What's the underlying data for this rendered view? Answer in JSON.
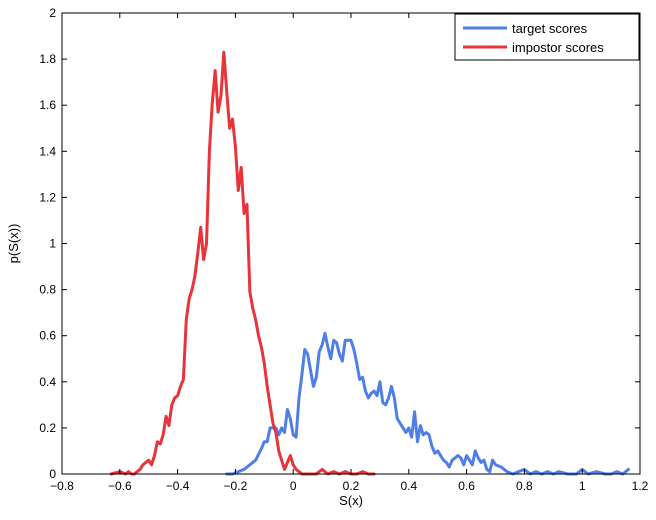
{
  "chart_data": {
    "type": "line",
    "xlabel": "S(x)",
    "ylabel": "p(S(x))",
    "xlim": [
      -0.8,
      1.2
    ],
    "ylim": [
      0,
      2
    ],
    "xticks": [
      -0.8,
      -0.6,
      -0.4,
      -0.2,
      0,
      0.2,
      0.4,
      0.6,
      0.8,
      1,
      1.2
    ],
    "xtick_labels": [
      "−0.8",
      "−0.6",
      "−0.4",
      "−0.2",
      "0",
      "0.2",
      "0.4",
      "0.6",
      "0.8",
      "1",
      "1.2"
    ],
    "yticks": [
      0,
      0.2,
      0.4,
      0.6,
      0.8,
      1,
      1.2,
      1.4,
      1.6,
      1.8,
      2
    ],
    "ytick_labels": [
      "0",
      "0.2",
      "0.4",
      "0.6",
      "0.8",
      "1",
      "1.2",
      "1.4",
      "1.6",
      "1.8",
      "2"
    ],
    "grid": false,
    "legend_position": "top-right",
    "series": [
      {
        "name": "target scores",
        "color": "#4f7fe6",
        "x": [
          -0.23,
          -0.21,
          -0.19,
          -0.17,
          -0.15,
          -0.13,
          -0.11,
          -0.1,
          -0.09,
          -0.08,
          -0.07,
          -0.06,
          -0.05,
          -0.04,
          -0.03,
          -0.02,
          -0.01,
          0.0,
          0.01,
          0.02,
          0.03,
          0.04,
          0.05,
          0.06,
          0.07,
          0.08,
          0.09,
          0.1,
          0.11,
          0.12,
          0.13,
          0.14,
          0.15,
          0.16,
          0.17,
          0.18,
          0.19,
          0.2,
          0.21,
          0.22,
          0.23,
          0.24,
          0.25,
          0.26,
          0.27,
          0.28,
          0.29,
          0.3,
          0.31,
          0.32,
          0.33,
          0.34,
          0.35,
          0.36,
          0.37,
          0.38,
          0.39,
          0.4,
          0.41,
          0.42,
          0.43,
          0.44,
          0.45,
          0.46,
          0.47,
          0.48,
          0.49,
          0.5,
          0.51,
          0.52,
          0.53,
          0.54,
          0.55,
          0.56,
          0.57,
          0.58,
          0.59,
          0.6,
          0.61,
          0.62,
          0.63,
          0.64,
          0.65,
          0.66,
          0.67,
          0.68,
          0.69,
          0.7,
          0.72,
          0.74,
          0.76,
          0.78,
          0.8,
          0.82,
          0.84,
          0.86,
          0.88,
          0.9,
          0.92,
          0.95,
          0.98,
          1.0,
          1.02,
          1.05,
          1.08,
          1.1,
          1.12,
          1.14,
          1.16
        ],
        "values": [
          0.0,
          0.0,
          0.01,
          0.02,
          0.04,
          0.06,
          0.11,
          0.14,
          0.14,
          0.2,
          0.2,
          0.2,
          0.17,
          0.2,
          0.18,
          0.28,
          0.24,
          0.17,
          0.16,
          0.33,
          0.43,
          0.54,
          0.52,
          0.45,
          0.38,
          0.42,
          0.53,
          0.56,
          0.61,
          0.55,
          0.5,
          0.58,
          0.57,
          0.52,
          0.49,
          0.58,
          0.58,
          0.58,
          0.54,
          0.48,
          0.41,
          0.42,
          0.36,
          0.33,
          0.35,
          0.36,
          0.34,
          0.4,
          0.31,
          0.3,
          0.33,
          0.38,
          0.33,
          0.24,
          0.22,
          0.2,
          0.18,
          0.2,
          0.16,
          0.27,
          0.14,
          0.21,
          0.17,
          0.18,
          0.17,
          0.12,
          0.09,
          0.1,
          0.08,
          0.06,
          0.05,
          0.03,
          0.06,
          0.07,
          0.08,
          0.07,
          0.04,
          0.08,
          0.06,
          0.04,
          0.1,
          0.07,
          0.05,
          0.06,
          0.02,
          0.01,
          0.06,
          0.04,
          0.03,
          0.01,
          0.0,
          0.01,
          0.02,
          0.0,
          0.01,
          0.0,
          0.01,
          0.0,
          0.01,
          0.0,
          0.0,
          0.02,
          0.0,
          0.01,
          0.0,
          0.0,
          0.01,
          0.0,
          0.02
        ]
      },
      {
        "name": "impostor scores",
        "color": "#e8333a",
        "x": [
          -0.63,
          -0.6,
          -0.58,
          -0.57,
          -0.56,
          -0.55,
          -0.54,
          -0.53,
          -0.52,
          -0.51,
          -0.5,
          -0.49,
          -0.48,
          -0.47,
          -0.46,
          -0.45,
          -0.44,
          -0.43,
          -0.42,
          -0.41,
          -0.4,
          -0.39,
          -0.38,
          -0.37,
          -0.36,
          -0.35,
          -0.34,
          -0.33,
          -0.32,
          -0.31,
          -0.3,
          -0.29,
          -0.28,
          -0.27,
          -0.26,
          -0.25,
          -0.24,
          -0.23,
          -0.22,
          -0.21,
          -0.2,
          -0.19,
          -0.18,
          -0.17,
          -0.16,
          -0.15,
          -0.14,
          -0.13,
          -0.12,
          -0.11,
          -0.1,
          -0.09,
          -0.08,
          -0.07,
          -0.06,
          -0.05,
          -0.04,
          -0.03,
          -0.02,
          -0.01,
          0.0,
          0.01,
          0.02,
          0.03,
          0.04,
          0.05,
          0.06,
          0.07,
          0.08,
          0.1,
          0.12,
          0.14,
          0.16,
          0.18,
          0.2,
          0.22,
          0.24,
          0.26,
          0.28
        ],
        "values": [
          0.0,
          0.01,
          0.0,
          0.01,
          0.0,
          0.0,
          0.01,
          0.02,
          0.04,
          0.05,
          0.06,
          0.04,
          0.08,
          0.14,
          0.13,
          0.17,
          0.25,
          0.21,
          0.3,
          0.33,
          0.34,
          0.38,
          0.41,
          0.67,
          0.76,
          0.8,
          0.86,
          0.96,
          1.07,
          0.93,
          1.0,
          1.4,
          1.61,
          1.75,
          1.57,
          1.64,
          1.83,
          1.66,
          1.5,
          1.54,
          1.42,
          1.23,
          1.33,
          1.13,
          1.17,
          0.79,
          0.72,
          0.67,
          0.6,
          0.55,
          0.48,
          0.38,
          0.3,
          0.22,
          0.18,
          0.1,
          0.06,
          0.02,
          0.05,
          0.08,
          0.04,
          0.02,
          0.01,
          0.0,
          0.0,
          0.0,
          0.0,
          0.0,
          0.0,
          0.02,
          0.0,
          0.01,
          0.0,
          0.01,
          0.0,
          0.0,
          0.01,
          0.0,
          0.0
        ]
      }
    ]
  }
}
